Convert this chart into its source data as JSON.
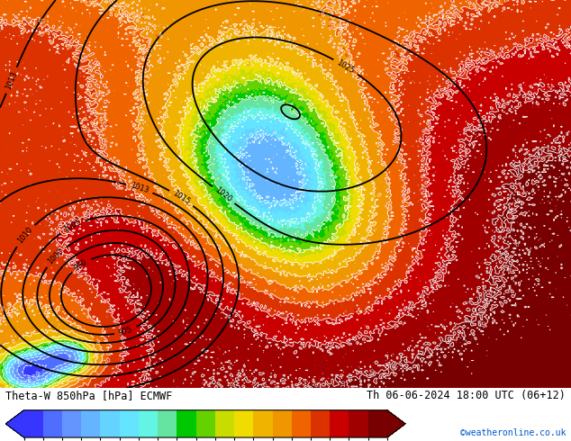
{
  "title_left": "Theta-W 850hPa [hPa] ECMWF",
  "title_right": "Th 06-06-2024 18:00 UTC (06+12)",
  "watermark": "©weatheronline.co.uk",
  "colorbar_levels": [
    -12,
    -10,
    -8,
    -6,
    -4,
    -3,
    -2,
    -1,
    0,
    1,
    2,
    3,
    4,
    6,
    8,
    10,
    12,
    14,
    16,
    18
  ],
  "colorbar_colors": [
    "#3636ff",
    "#4f6dff",
    "#6495ff",
    "#64b4ff",
    "#64d4ff",
    "#64e4ff",
    "#64f4e4",
    "#64e4a0",
    "#00c800",
    "#64d200",
    "#c8dc00",
    "#f0dc00",
    "#f0b400",
    "#f09600",
    "#f06400",
    "#dc3200",
    "#c80000",
    "#a00000",
    "#780000"
  ],
  "bg_color": "#ffffff",
  "fig_width": 6.34,
  "fig_height": 4.9
}
